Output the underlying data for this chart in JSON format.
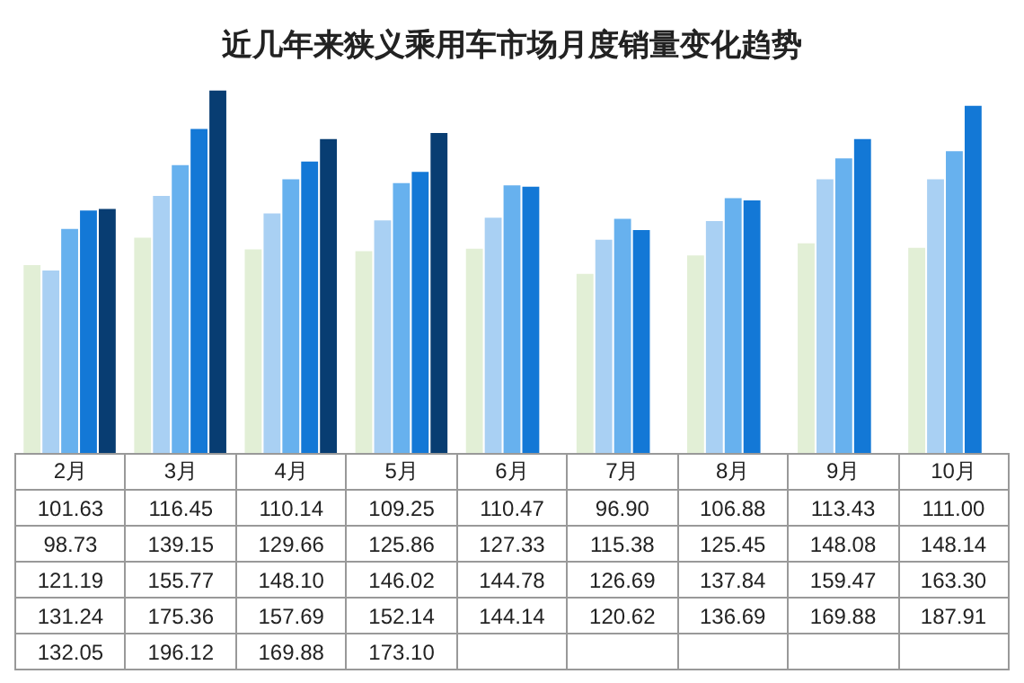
{
  "chart_data": {
    "type": "bar",
    "title": "近几年来狭义乘用车市场月度销量变化趋势",
    "categories": [
      "2月",
      "3月",
      "4月",
      "5月",
      "6月",
      "7月",
      "8月",
      "9月",
      "10月"
    ],
    "series": [
      {
        "color": "#e2efd6",
        "values": [
          101.63,
          116.45,
          110.14,
          109.25,
          110.47,
          96.9,
          106.88,
          113.43,
          111.0
        ],
        "value_labels": [
          "101.63",
          "116.45",
          "110.14",
          "109.25",
          "110.47",
          "96.90",
          "106.88",
          "113.43",
          "111.00"
        ]
      },
      {
        "color": "#a9d0f3",
        "values": [
          98.73,
          139.15,
          129.66,
          125.86,
          127.33,
          115.38,
          125.45,
          148.08,
          148.14
        ],
        "value_labels": [
          "98.73",
          "139.15",
          "129.66",
          "125.86",
          "127.33",
          "115.38",
          "125.45",
          "148.08",
          "148.14"
        ]
      },
      {
        "color": "#67b1ee",
        "values": [
          121.19,
          155.77,
          148.1,
          146.02,
          144.78,
          126.69,
          137.84,
          159.47,
          163.3
        ],
        "value_labels": [
          "121.19",
          "155.77",
          "148.10",
          "146.02",
          "144.78",
          "126.69",
          "137.84",
          "159.47",
          "163.30"
        ]
      },
      {
        "color": "#1378d6",
        "values": [
          131.24,
          175.36,
          157.69,
          152.14,
          144.14,
          120.62,
          136.69,
          169.88,
          187.91
        ],
        "value_labels": [
          "131.24",
          "175.36",
          "157.69",
          "152.14",
          "144.14",
          "120.62",
          "136.69",
          "169.88",
          "187.91"
        ]
      },
      {
        "color": "#083d72",
        "values": [
          132.05,
          196.12,
          169.88,
          173.1,
          null,
          null,
          null,
          null,
          null
        ],
        "value_labels": [
          "132.05",
          "196.12",
          "169.88",
          "173.10",
          null,
          null,
          null,
          null,
          null
        ]
      }
    ]
  }
}
